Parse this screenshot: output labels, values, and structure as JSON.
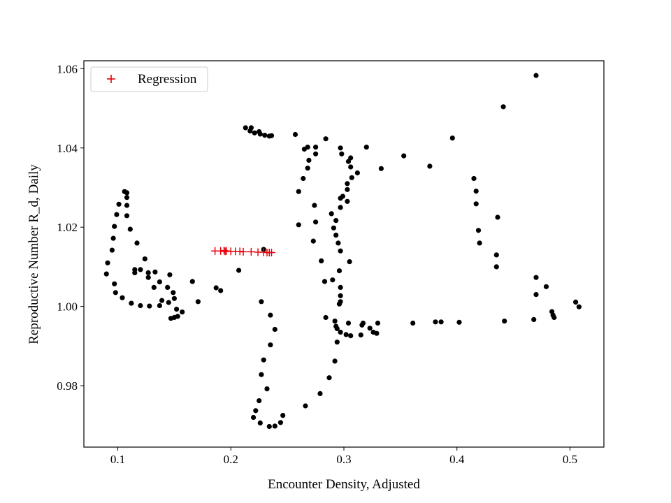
{
  "chart_data": {
    "type": "scatter",
    "xlabel": "Encounter Density, Adjusted",
    "ylabel": "Reproductive Number R_d, Daily",
    "xlim": [
      0.07,
      0.53
    ],
    "ylim": [
      0.9645,
      1.062
    ],
    "x_ticks": [
      0.1,
      0.2,
      0.3,
      0.4,
      0.5
    ],
    "x_tick_labels": [
      "0.1",
      "0.2",
      "0.3",
      "0.4",
      "0.5"
    ],
    "y_ticks": [
      0.98,
      1.0,
      1.02,
      1.04,
      1.06
    ],
    "y_tick_labels": [
      "0.98",
      "1.00",
      "1.02",
      "1.04",
      "1.06"
    ],
    "grid": false,
    "legend_position": "top-left",
    "series": [
      {
        "marker": "dot",
        "color": "#000000",
        "points": [
          [
            0.47,
            1.0583
          ],
          [
            0.441,
            1.0504
          ],
          [
            0.396,
            1.0425
          ],
          [
            0.415,
            1.0323
          ],
          [
            0.417,
            1.0291
          ],
          [
            0.417,
            1.0259
          ],
          [
            0.419,
            1.0192
          ],
          [
            0.42,
            1.016
          ],
          [
            0.436,
            1.0225
          ],
          [
            0.435,
            1.013
          ],
          [
            0.435,
            1.01
          ],
          [
            0.47,
            1.0073
          ],
          [
            0.479,
            1.005
          ],
          [
            0.47,
            1.003
          ],
          [
            0.484,
            0.9987
          ],
          [
            0.485,
            0.9978
          ],
          [
            0.486,
            0.9972
          ],
          [
            0.468,
            0.9967
          ],
          [
            0.505,
            1.0011
          ],
          [
            0.508,
            0.9999
          ],
          [
            0.442,
            0.9963
          ],
          [
            0.402,
            0.996
          ],
          [
            0.386,
            0.9961
          ],
          [
            0.381,
            0.9961
          ],
          [
            0.361,
            0.9958
          ],
          [
            0.353,
            1.038
          ],
          [
            0.376,
            1.0354
          ],
          [
            0.333,
            1.0348
          ],
          [
            0.33,
            0.9958
          ],
          [
            0.329,
            0.9932
          ],
          [
            0.326,
            0.9935
          ],
          [
            0.323,
            0.9945
          ],
          [
            0.317,
            0.9958
          ],
          [
            0.316,
            0.9953
          ],
          [
            0.315,
            0.9928
          ],
          [
            0.306,
            0.9926
          ],
          [
            0.302,
            0.9929
          ],
          [
            0.297,
            0.9935
          ],
          [
            0.294,
            0.9944
          ],
          [
            0.292,
            0.9963
          ],
          [
            0.304,
            0.9958
          ],
          [
            0.296,
            1.0006
          ],
          [
            0.297,
            1.0012
          ],
          [
            0.297,
            1.0027
          ],
          [
            0.297,
            1.0048
          ],
          [
            0.296,
            1.009
          ],
          [
            0.305,
            1.0113
          ],
          [
            0.297,
            1.014
          ],
          [
            0.295,
            1.016
          ],
          [
            0.293,
            1.018
          ],
          [
            0.293,
            1.0217
          ],
          [
            0.297,
            1.025
          ],
          [
            0.299,
            1.0278
          ],
          [
            0.303,
            1.0295
          ],
          [
            0.303,
            1.031
          ],
          [
            0.307,
            1.0325
          ],
          [
            0.312,
            1.0337
          ],
          [
            0.306,
            1.0352
          ],
          [
            0.304,
            1.0366
          ],
          [
            0.306,
            1.0375
          ],
          [
            0.298,
            1.0385
          ],
          [
            0.297,
            1.04
          ],
          [
            0.32,
            1.0402
          ],
          [
            0.303,
            1.0265
          ],
          [
            0.297,
            1.0273
          ],
          [
            0.257,
            1.0434
          ],
          [
            0.284,
            1.0423
          ],
          [
            0.265,
            1.0397
          ],
          [
            0.268,
            1.0402
          ],
          [
            0.275,
            1.0402
          ],
          [
            0.275,
            1.0385
          ],
          [
            0.269,
            1.0369
          ],
          [
            0.268,
            1.0349
          ],
          [
            0.264,
            1.0323
          ],
          [
            0.26,
            1.029
          ],
          [
            0.274,
            1.0255
          ],
          [
            0.289,
            1.0234
          ],
          [
            0.275,
            1.0213
          ],
          [
            0.26,
            1.0206
          ],
          [
            0.291,
            1.0198
          ],
          [
            0.273,
            1.0165
          ],
          [
            0.28,
            1.0115
          ],
          [
            0.29,
            1.0067
          ],
          [
            0.283,
            1.0063
          ],
          [
            0.284,
            0.9972
          ],
          [
            0.293,
            0.995
          ],
          [
            0.294,
            0.991
          ],
          [
            0.292,
            0.9862
          ],
          [
            0.287,
            0.982
          ],
          [
            0.279,
            0.978
          ],
          [
            0.266,
            0.9749
          ],
          [
            0.213,
            1.0451
          ],
          [
            0.218,
            1.0451
          ],
          [
            0.217,
            1.0443
          ],
          [
            0.221,
            1.0438
          ],
          [
            0.225,
            1.0441
          ],
          [
            0.226,
            1.0435
          ],
          [
            0.23,
            1.0432
          ],
          [
            0.234,
            1.043
          ],
          [
            0.236,
            1.0431
          ],
          [
            0.229,
            1.0144
          ],
          [
            0.207,
            1.0091
          ],
          [
            0.187,
            1.0047
          ],
          [
            0.191,
            1.004
          ],
          [
            0.227,
            1.0012
          ],
          [
            0.235,
            0.9978
          ],
          [
            0.239,
            0.9942
          ],
          [
            0.235,
            0.9903
          ],
          [
            0.229,
            0.9865
          ],
          [
            0.227,
            0.9828
          ],
          [
            0.232,
            0.9792
          ],
          [
            0.225,
            0.9762
          ],
          [
            0.222,
            0.9737
          ],
          [
            0.22,
            0.972
          ],
          [
            0.226,
            0.9706
          ],
          [
            0.234,
            0.9697
          ],
          [
            0.239,
            0.9698
          ],
          [
            0.244,
            0.9707
          ],
          [
            0.246,
            0.9725
          ],
          [
            0.106,
            1.029
          ],
          [
            0.108,
            1.0287
          ],
          [
            0.108,
            1.0275
          ],
          [
            0.101,
            1.0258
          ],
          [
            0.108,
            1.0255
          ],
          [
            0.099,
            1.0232
          ],
          [
            0.108,
            1.0229
          ],
          [
            0.097,
            1.0202
          ],
          [
            0.111,
            1.0195
          ],
          [
            0.096,
            1.0172
          ],
          [
            0.117,
            1.016
          ],
          [
            0.095,
            1.0142
          ],
          [
            0.091,
            1.011
          ],
          [
            0.124,
            1.012
          ],
          [
            0.09,
            1.0082
          ],
          [
            0.115,
            1.0093
          ],
          [
            0.12,
            1.0093
          ],
          [
            0.115,
            1.0085
          ],
          [
            0.127,
            1.0085
          ],
          [
            0.133,
            1.0087
          ],
          [
            0.127,
            1.0073
          ],
          [
            0.146,
            1.008
          ],
          [
            0.137,
            1.0062
          ],
          [
            0.166,
            1.0063
          ],
          [
            0.097,
            1.0057
          ],
          [
            0.132,
            1.0048
          ],
          [
            0.144,
            1.0048
          ],
          [
            0.149,
            1.0035
          ],
          [
            0.098,
            1.0035
          ],
          [
            0.15,
            1.002
          ],
          [
            0.104,
            1.0022
          ],
          [
            0.139,
            1.0015
          ],
          [
            0.145,
            1.001
          ],
          [
            0.112,
            1.0008
          ],
          [
            0.171,
            1.0012
          ],
          [
            0.12,
            1.0002
          ],
          [
            0.128,
            1.0001
          ],
          [
            0.137,
            1.0002
          ],
          [
            0.152,
            0.9993
          ],
          [
            0.157,
            0.9986
          ],
          [
            0.153,
            0.9975
          ],
          [
            0.15,
            0.9972
          ],
          [
            0.147,
            0.997
          ]
        ]
      },
      {
        "name": "Regression",
        "marker": "plus",
        "color": "#e8000b",
        "points": [
          [
            0.186,
            1.014
          ],
          [
            0.191,
            1.014
          ],
          [
            0.194,
            1.0141
          ],
          [
            0.195,
            1.0139
          ],
          [
            0.196,
            1.014
          ],
          [
            0.2,
            1.0139
          ],
          [
            0.204,
            1.0139
          ],
          [
            0.208,
            1.0139
          ],
          [
            0.211,
            1.0138
          ],
          [
            0.218,
            1.0138
          ],
          [
            0.224,
            1.0137
          ],
          [
            0.229,
            1.0137
          ],
          [
            0.232,
            1.0136
          ],
          [
            0.234,
            1.0136
          ],
          [
            0.236,
            1.0136
          ]
        ]
      }
    ],
    "legend": [
      {
        "label": "Regression",
        "marker": "plus",
        "color": "#e8000b"
      }
    ]
  }
}
